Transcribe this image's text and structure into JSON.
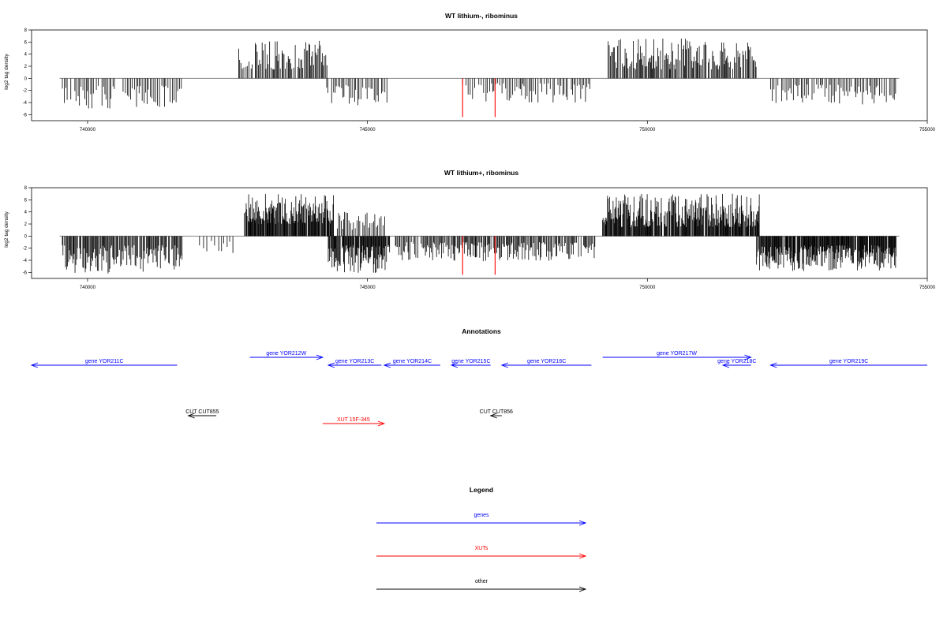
{
  "chart_data": [
    {
      "type": "bar",
      "title": "WT lithium-, ribominus",
      "xlabel": "",
      "ylabel": "log2 tag density",
      "xlim": [
        739000,
        755000
      ],
      "ylim": [
        -7,
        8
      ],
      "xticks": [
        740000,
        745000,
        750000,
        755000
      ],
      "xtick_labels": [
        "740000",
        "745000",
        "750000",
        "755000"
      ],
      "yticks": [
        -6,
        -4,
        -2,
        0,
        2,
        4,
        6,
        8
      ],
      "ytick_labels": [
        "-6",
        "-4",
        "-2",
        "0",
        "2",
        "4",
        "6",
        "8"
      ],
      "baseline_range": [
        739500,
        754500
      ],
      "series_color": "#000000",
      "highlight_color": "#ff0000",
      "regions": [
        {
          "start": 739550,
          "end": 741700,
          "sign": -1,
          "min": 1.2,
          "max": 5.0,
          "step": 30
        },
        {
          "start": 742700,
          "end": 744300,
          "sign": 1,
          "min": 1.5,
          "max": 6.2,
          "step": 20
        },
        {
          "start": 744250,
          "end": 745350,
          "sign": -1,
          "min": 1.0,
          "max": 4.5,
          "step": 28
        },
        {
          "start": 746700,
          "end": 749000,
          "sign": -1,
          "min": 0.8,
          "max": 4.0,
          "step": 32
        },
        {
          "start": 749300,
          "end": 751950,
          "sign": 1,
          "min": 1.5,
          "max": 6.6,
          "step": 18
        },
        {
          "start": 752200,
          "end": 754450,
          "sign": -1,
          "min": 1.0,
          "max": 4.5,
          "step": 30
        }
      ],
      "highlights": [
        {
          "x": 746700,
          "y": -6.4
        },
        {
          "x": 747280,
          "y": -6.4
        }
      ]
    },
    {
      "type": "bar",
      "title": "WT lithium+, ribominus",
      "xlabel": "",
      "ylabel": "log2 tag density",
      "xlim": [
        739000,
        755000
      ],
      "ylim": [
        -7,
        8
      ],
      "xticks": [
        740000,
        745000,
        750000,
        755000
      ],
      "xtick_labels": [
        "740000",
        "745000",
        "750000",
        "755000"
      ],
      "yticks": [
        -6,
        -4,
        -2,
        0,
        2,
        4,
        6,
        8
      ],
      "ytick_labels": [
        "-6",
        "-4",
        "-2",
        "0",
        "2",
        "4",
        "6",
        "8"
      ],
      "baseline_range": [
        739500,
        754500
      ],
      "series_color": "#000000",
      "highlight_color": "#ff0000",
      "regions": [
        {
          "start": 739550,
          "end": 741700,
          "sign": -1,
          "min": 1.5,
          "max": 6.2,
          "step": 15
        },
        {
          "start": 742000,
          "end": 742600,
          "sign": -1,
          "min": 0.8,
          "max": 3.0,
          "step": 60
        },
        {
          "start": 742800,
          "end": 744400,
          "sign": 1,
          "min": 2.0,
          "max": 7.0,
          "step": 10
        },
        {
          "start": 744300,
          "end": 745400,
          "sign": -1,
          "min": 1.5,
          "max": 6.1,
          "step": 10
        },
        {
          "start": 744400,
          "end": 745350,
          "sign": 1,
          "min": 1.0,
          "max": 4.0,
          "step": 25
        },
        {
          "start": 745500,
          "end": 749100,
          "sign": -1,
          "min": 1.0,
          "max": 4.2,
          "step": 18
        },
        {
          "start": 749200,
          "end": 752000,
          "sign": 1,
          "min": 1.5,
          "max": 7.0,
          "step": 10
        },
        {
          "start": 751950,
          "end": 754450,
          "sign": -1,
          "min": 1.5,
          "max": 6.0,
          "step": 10
        }
      ],
      "highlights": [
        {
          "x": 746700,
          "y": -6.4
        },
        {
          "x": 747280,
          "y": -6.4
        }
      ]
    }
  ],
  "annotations": {
    "title": "Annotations",
    "features": [
      {
        "label": "gene YOR211C",
        "start": 739000,
        "end": 741600,
        "strand": -1,
        "row": 1,
        "color": "#0000ff"
      },
      {
        "label": "gene YOR212W",
        "start": 742900,
        "end": 744200,
        "strand": 1,
        "row": 0,
        "color": "#0000ff"
      },
      {
        "label": "gene YOR213C",
        "start": 744300,
        "end": 745250,
        "strand": -1,
        "row": 1,
        "color": "#0000ff"
      },
      {
        "label": "gene YOR214C",
        "start": 745300,
        "end": 746300,
        "strand": -1,
        "row": 1,
        "color": "#0000ff"
      },
      {
        "label": "gene YOR215C",
        "start": 746500,
        "end": 747200,
        "strand": -1,
        "row": 1,
        "color": "#0000ff"
      },
      {
        "label": "gene YOR216C",
        "start": 747400,
        "end": 749000,
        "strand": -1,
        "row": 1,
        "color": "#0000ff"
      },
      {
        "label": "gene YOR217W",
        "start": 749200,
        "end": 751850,
        "strand": 1,
        "row": 0,
        "color": "#0000ff"
      },
      {
        "label": "gene YOR218C",
        "start": 751350,
        "end": 751850,
        "strand": -1,
        "row": 1,
        "color": "#0000ff"
      },
      {
        "label": "gene YOR219C",
        "start": 752200,
        "end": 755000,
        "strand": -1,
        "row": 1,
        "color": "#0000ff"
      },
      {
        "label": "CUT CUT855",
        "start": 741800,
        "end": 742300,
        "strand": -1,
        "row": 2,
        "color": "#000000"
      },
      {
        "label": "CUT CUT856",
        "start": 747200,
        "end": 747400,
        "strand": -1,
        "row": 2,
        "color": "#000000"
      },
      {
        "label": "XUT 15F-345",
        "start": 744200,
        "end": 745300,
        "strand": 1,
        "row": 3,
        "color": "#ff0000"
      }
    ]
  },
  "legend": {
    "title": "Legend",
    "items": [
      {
        "label": "genes",
        "color": "#0000ff"
      },
      {
        "label": "XUTs",
        "color": "#ff0000"
      },
      {
        "label": "other",
        "color": "#000000"
      }
    ]
  }
}
